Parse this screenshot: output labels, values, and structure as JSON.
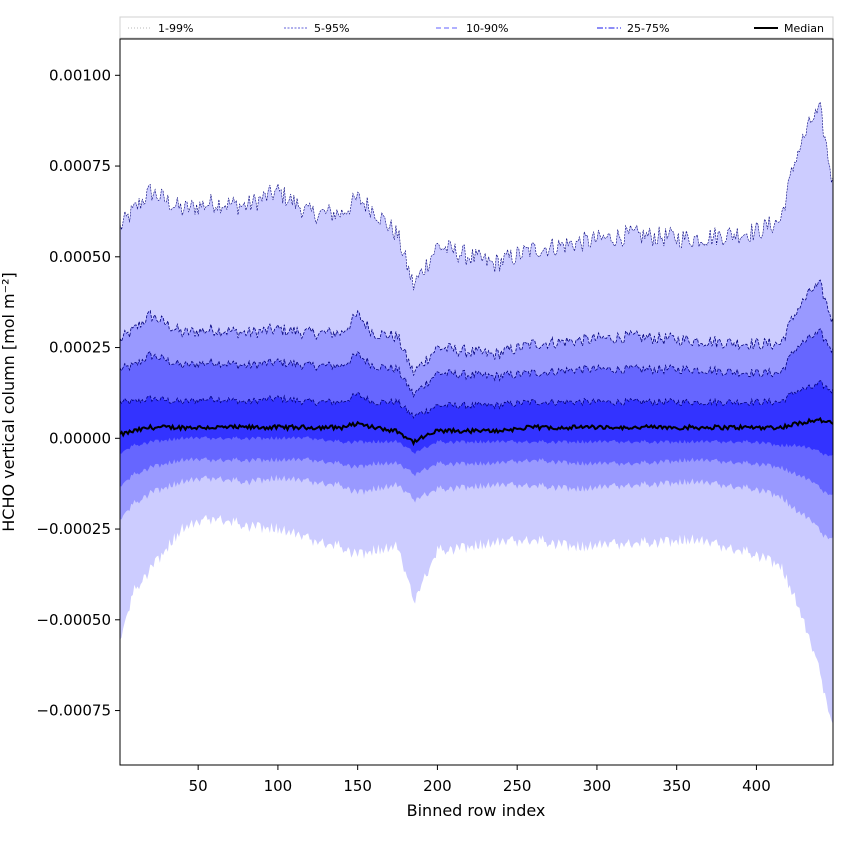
{
  "chart_data": {
    "type": "area",
    "title": "",
    "xlabel": "Binned row index",
    "ylabel": "HCHO vertical column [mol m⁻²]",
    "xlim": [
      1,
      448
    ],
    "ylim": [
      -0.0009,
      0.0011
    ],
    "x_ticks": [
      {
        "value": 50,
        "label": "50"
      },
      {
        "value": 100,
        "label": "100"
      },
      {
        "value": 150,
        "label": "150"
      },
      {
        "value": 200,
        "label": "200"
      },
      {
        "value": 250,
        "label": "250"
      },
      {
        "value": 300,
        "label": "300"
      },
      {
        "value": 350,
        "label": "350"
      },
      {
        "value": 400,
        "label": "400"
      }
    ],
    "y_ticks": [
      {
        "value": -0.00075,
        "label": "−0.00075"
      },
      {
        "value": -0.0005,
        "label": "−0.00050"
      },
      {
        "value": -0.00025,
        "label": "−0.00025"
      },
      {
        "value": 0.0,
        "label": "0.00000"
      },
      {
        "value": 0.00025,
        "label": "0.00025"
      },
      {
        "value": 0.0005,
        "label": "0.00050"
      },
      {
        "value": 0.00075,
        "label": "0.00075"
      },
      {
        "value": 0.001,
        "label": "0.00100"
      }
    ],
    "grid": false,
    "legend_position": "top (above plot, spanning full width)",
    "legend": [
      {
        "label": "1-99%",
        "style": "dotted",
        "color": "#c8c8c8"
      },
      {
        "label": "5-95%",
        "style": "dashed-thin",
        "color": "#8080e0"
      },
      {
        "label": "10-90%",
        "style": "dashed",
        "color": "#8080ff"
      },
      {
        "label": "25-75%",
        "style": "dash-dot",
        "color": "#4848f0"
      },
      {
        "label": "Median",
        "style": "solid",
        "color": "#000000"
      }
    ],
    "x_anchors": [
      1,
      10,
      20,
      40,
      60,
      80,
      100,
      120,
      140,
      150,
      160,
      175,
      185,
      200,
      235,
      260,
      290,
      320,
      360,
      400,
      415,
      425,
      435,
      440,
      448
    ],
    "bands": [
      {
        "name": "1-99%",
        "color": "#ccccff",
        "upper": [
          0.00058,
          0.00063,
          0.00068,
          0.00063,
          0.00065,
          0.00064,
          0.00068,
          0.00062,
          0.00062,
          0.00066,
          0.00063,
          0.00056,
          0.00042,
          0.00053,
          0.00048,
          0.00052,
          0.00054,
          0.00056,
          0.00055,
          0.00057,
          0.0006,
          0.00078,
          0.00088,
          0.0009,
          0.0007
        ],
        "lower": [
          -0.00055,
          -0.00042,
          -0.00036,
          -0.00025,
          -0.00022,
          -0.00024,
          -0.00025,
          -0.00028,
          -0.0003,
          -0.00032,
          -0.00031,
          -0.0003,
          -0.00045,
          -0.00031,
          -0.00029,
          -0.00028,
          -0.0003,
          -0.00029,
          -0.00028,
          -0.00032,
          -0.00035,
          -0.00045,
          -0.00058,
          -0.00065,
          -0.0008
        ]
      },
      {
        "name": "5-95%",
        "color": "#9999ff",
        "upper": [
          0.00027,
          0.0003,
          0.00034,
          0.00029,
          0.0003,
          0.00029,
          0.0003,
          0.00029,
          0.00029,
          0.00034,
          0.00029,
          0.00028,
          0.00018,
          0.00025,
          0.00023,
          0.00026,
          0.00027,
          0.00028,
          0.00027,
          0.00026,
          0.00026,
          0.00035,
          0.00041,
          0.00042,
          0.00032
        ],
        "lower": [
          -0.00022,
          -0.00018,
          -0.00015,
          -0.00012,
          -0.00011,
          -0.00012,
          -0.00011,
          -0.00012,
          -0.00013,
          -0.00015,
          -0.00014,
          -0.00013,
          -0.00017,
          -0.00014,
          -0.00013,
          -0.00013,
          -0.00014,
          -0.00013,
          -0.00012,
          -0.00014,
          -0.00016,
          -0.0002,
          -0.00023,
          -0.00026,
          -0.00028
        ]
      },
      {
        "name": "10-90%",
        "color": "#6666ff",
        "upper": [
          0.00019,
          0.0002,
          0.00023,
          0.0002,
          0.00021,
          0.0002,
          0.00021,
          0.0002,
          0.0002,
          0.00023,
          0.0002,
          0.00019,
          0.00012,
          0.00018,
          0.00017,
          0.00018,
          0.00019,
          0.00019,
          0.00019,
          0.00018,
          0.00018,
          0.00025,
          0.00028,
          0.00029,
          0.00024
        ],
        "lower": [
          -0.00013,
          -0.0001,
          -8e-05,
          -6e-05,
          -6e-05,
          -6e-05,
          -6e-05,
          -6e-05,
          -7e-05,
          -8e-05,
          -7e-05,
          -7e-05,
          -0.0001,
          -7e-05,
          -7e-05,
          -6e-05,
          -7e-05,
          -7e-05,
          -6e-05,
          -7e-05,
          -8e-05,
          -0.0001,
          -0.00012,
          -0.00014,
          -0.00016
        ]
      },
      {
        "name": "25-75%",
        "color": "#3333ff",
        "upper": [
          0.0001,
          0.0001,
          0.00011,
          0.0001,
          0.00011,
          0.0001,
          0.00011,
          0.0001,
          0.0001,
          0.00012,
          0.0001,
          0.0001,
          6e-05,
          9e-05,
          9e-05,
          0.0001,
          0.0001,
          0.0001,
          0.0001,
          0.0001,
          0.0001,
          0.00013,
          0.00014,
          0.00015,
          0.00013
        ],
        "lower": [
          -4e-05,
          -2e-05,
          -1e-05,
          0.0,
          0.0,
          0.0,
          0.0,
          0.0,
          -1e-05,
          -1e-05,
          -1e-05,
          -1e-05,
          -4e-05,
          -1e-05,
          -1e-05,
          -1e-05,
          -1e-05,
          -1e-05,
          -1e-05,
          -1e-05,
          -2e-05,
          -2e-05,
          -3e-05,
          -4e-05,
          -5e-05
        ]
      }
    ],
    "median": {
      "name": "Median",
      "color": "#000000",
      "values": [
        1e-05,
        2e-05,
        3e-05,
        3e-05,
        3e-05,
        3e-05,
        3e-05,
        3e-05,
        3e-05,
        4e-05,
        3e-05,
        2e-05,
        -1e-05,
        2e-05,
        2e-05,
        3e-05,
        3e-05,
        3e-05,
        3e-05,
        3e-05,
        3e-05,
        4e-05,
        5e-05,
        5e-05,
        4e-05
      ]
    }
  }
}
